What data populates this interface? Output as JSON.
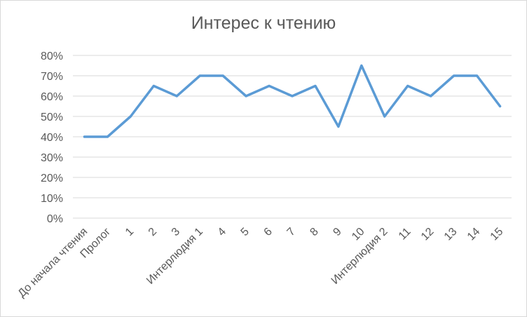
{
  "chart_data": {
    "type": "line",
    "title": "Интерес к чтению",
    "xlabel": "",
    "ylabel": "",
    "categories": [
      "До начала чтения",
      "Пролог",
      "1",
      "2",
      "3",
      "Интерлюдия 1",
      "4",
      "5",
      "6",
      "7",
      "8",
      "9",
      "10",
      "Интерлюдия 2",
      "11",
      "12",
      "13",
      "14",
      "15"
    ],
    "series": [
      {
        "values": [
          40,
          40,
          50,
          65,
          60,
          70,
          70,
          60,
          65,
          60,
          65,
          45,
          75,
          50,
          65,
          60,
          70,
          70,
          55
        ]
      }
    ],
    "ylim": [
      0,
      80
    ],
    "yticks": [
      "0%",
      "10%",
      "20%",
      "30%",
      "40%",
      "50%",
      "60%",
      "70%",
      "80%"
    ],
    "grid": true,
    "legend": "none",
    "line_color": "#5b9bd5",
    "grid_color": "#d9d9d9",
    "text_color": "#595959"
  }
}
